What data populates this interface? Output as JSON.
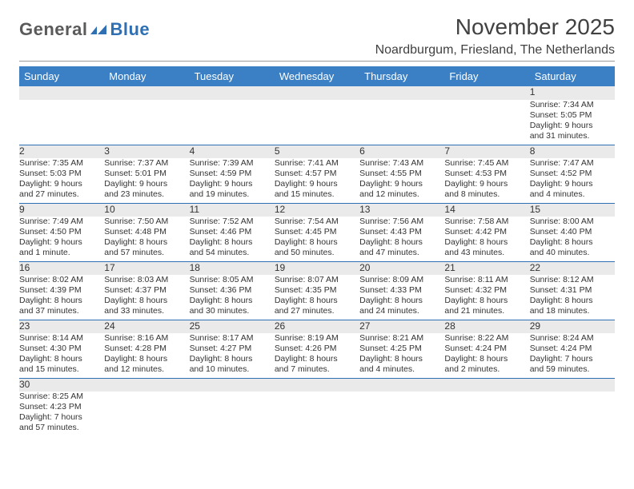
{
  "logo": {
    "textDark": "General",
    "textBlue": "Blue"
  },
  "title": "November 2025",
  "location": "Noardburgum, Friesland, The Netherlands",
  "colors": {
    "headerBg": "#3b7fc4",
    "headerText": "#ffffff",
    "dayNumBg": "#eaeaea",
    "rowBorder": "#2f6fb3",
    "bodyText": "#333333"
  },
  "weekdays": [
    "Sunday",
    "Monday",
    "Tuesday",
    "Wednesday",
    "Thursday",
    "Friday",
    "Saturday"
  ],
  "weeks": [
    {
      "nums": [
        "",
        "",
        "",
        "",
        "",
        "",
        "1"
      ],
      "cells": [
        null,
        null,
        null,
        null,
        null,
        null,
        {
          "sr": "Sunrise: 7:34 AM",
          "ss": "Sunset: 5:05 PM",
          "d1": "Daylight: 9 hours",
          "d2": "and 31 minutes."
        }
      ]
    },
    {
      "nums": [
        "2",
        "3",
        "4",
        "5",
        "6",
        "7",
        "8"
      ],
      "cells": [
        {
          "sr": "Sunrise: 7:35 AM",
          "ss": "Sunset: 5:03 PM",
          "d1": "Daylight: 9 hours",
          "d2": "and 27 minutes."
        },
        {
          "sr": "Sunrise: 7:37 AM",
          "ss": "Sunset: 5:01 PM",
          "d1": "Daylight: 9 hours",
          "d2": "and 23 minutes."
        },
        {
          "sr": "Sunrise: 7:39 AM",
          "ss": "Sunset: 4:59 PM",
          "d1": "Daylight: 9 hours",
          "d2": "and 19 minutes."
        },
        {
          "sr": "Sunrise: 7:41 AM",
          "ss": "Sunset: 4:57 PM",
          "d1": "Daylight: 9 hours",
          "d2": "and 15 minutes."
        },
        {
          "sr": "Sunrise: 7:43 AM",
          "ss": "Sunset: 4:55 PM",
          "d1": "Daylight: 9 hours",
          "d2": "and 12 minutes."
        },
        {
          "sr": "Sunrise: 7:45 AM",
          "ss": "Sunset: 4:53 PM",
          "d1": "Daylight: 9 hours",
          "d2": "and 8 minutes."
        },
        {
          "sr": "Sunrise: 7:47 AM",
          "ss": "Sunset: 4:52 PM",
          "d1": "Daylight: 9 hours",
          "d2": "and 4 minutes."
        }
      ]
    },
    {
      "nums": [
        "9",
        "10",
        "11",
        "12",
        "13",
        "14",
        "15"
      ],
      "cells": [
        {
          "sr": "Sunrise: 7:49 AM",
          "ss": "Sunset: 4:50 PM",
          "d1": "Daylight: 9 hours",
          "d2": "and 1 minute."
        },
        {
          "sr": "Sunrise: 7:50 AM",
          "ss": "Sunset: 4:48 PM",
          "d1": "Daylight: 8 hours",
          "d2": "and 57 minutes."
        },
        {
          "sr": "Sunrise: 7:52 AM",
          "ss": "Sunset: 4:46 PM",
          "d1": "Daylight: 8 hours",
          "d2": "and 54 minutes."
        },
        {
          "sr": "Sunrise: 7:54 AM",
          "ss": "Sunset: 4:45 PM",
          "d1": "Daylight: 8 hours",
          "d2": "and 50 minutes."
        },
        {
          "sr": "Sunrise: 7:56 AM",
          "ss": "Sunset: 4:43 PM",
          "d1": "Daylight: 8 hours",
          "d2": "and 47 minutes."
        },
        {
          "sr": "Sunrise: 7:58 AM",
          "ss": "Sunset: 4:42 PM",
          "d1": "Daylight: 8 hours",
          "d2": "and 43 minutes."
        },
        {
          "sr": "Sunrise: 8:00 AM",
          "ss": "Sunset: 4:40 PM",
          "d1": "Daylight: 8 hours",
          "d2": "and 40 minutes."
        }
      ]
    },
    {
      "nums": [
        "16",
        "17",
        "18",
        "19",
        "20",
        "21",
        "22"
      ],
      "cells": [
        {
          "sr": "Sunrise: 8:02 AM",
          "ss": "Sunset: 4:39 PM",
          "d1": "Daylight: 8 hours",
          "d2": "and 37 minutes."
        },
        {
          "sr": "Sunrise: 8:03 AM",
          "ss": "Sunset: 4:37 PM",
          "d1": "Daylight: 8 hours",
          "d2": "and 33 minutes."
        },
        {
          "sr": "Sunrise: 8:05 AM",
          "ss": "Sunset: 4:36 PM",
          "d1": "Daylight: 8 hours",
          "d2": "and 30 minutes."
        },
        {
          "sr": "Sunrise: 8:07 AM",
          "ss": "Sunset: 4:35 PM",
          "d1": "Daylight: 8 hours",
          "d2": "and 27 minutes."
        },
        {
          "sr": "Sunrise: 8:09 AM",
          "ss": "Sunset: 4:33 PM",
          "d1": "Daylight: 8 hours",
          "d2": "and 24 minutes."
        },
        {
          "sr": "Sunrise: 8:11 AM",
          "ss": "Sunset: 4:32 PM",
          "d1": "Daylight: 8 hours",
          "d2": "and 21 minutes."
        },
        {
          "sr": "Sunrise: 8:12 AM",
          "ss": "Sunset: 4:31 PM",
          "d1": "Daylight: 8 hours",
          "d2": "and 18 minutes."
        }
      ]
    },
    {
      "nums": [
        "23",
        "24",
        "25",
        "26",
        "27",
        "28",
        "29"
      ],
      "cells": [
        {
          "sr": "Sunrise: 8:14 AM",
          "ss": "Sunset: 4:30 PM",
          "d1": "Daylight: 8 hours",
          "d2": "and 15 minutes."
        },
        {
          "sr": "Sunrise: 8:16 AM",
          "ss": "Sunset: 4:28 PM",
          "d1": "Daylight: 8 hours",
          "d2": "and 12 minutes."
        },
        {
          "sr": "Sunrise: 8:17 AM",
          "ss": "Sunset: 4:27 PM",
          "d1": "Daylight: 8 hours",
          "d2": "and 10 minutes."
        },
        {
          "sr": "Sunrise: 8:19 AM",
          "ss": "Sunset: 4:26 PM",
          "d1": "Daylight: 8 hours",
          "d2": "and 7 minutes."
        },
        {
          "sr": "Sunrise: 8:21 AM",
          "ss": "Sunset: 4:25 PM",
          "d1": "Daylight: 8 hours",
          "d2": "and 4 minutes."
        },
        {
          "sr": "Sunrise: 8:22 AM",
          "ss": "Sunset: 4:24 PM",
          "d1": "Daylight: 8 hours",
          "d2": "and 2 minutes."
        },
        {
          "sr": "Sunrise: 8:24 AM",
          "ss": "Sunset: 4:24 PM",
          "d1": "Daylight: 7 hours",
          "d2": "and 59 minutes."
        }
      ]
    },
    {
      "nums": [
        "30",
        "",
        "",
        "",
        "",
        "",
        ""
      ],
      "cells": [
        {
          "sr": "Sunrise: 8:25 AM",
          "ss": "Sunset: 4:23 PM",
          "d1": "Daylight: 7 hours",
          "d2": "and 57 minutes."
        },
        null,
        null,
        null,
        null,
        null,
        null
      ],
      "last": true
    }
  ]
}
